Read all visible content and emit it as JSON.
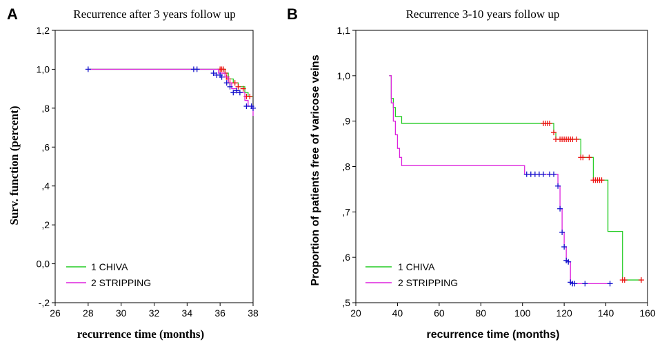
{
  "chart_data": [
    {
      "type": "line",
      "panel": "A",
      "title": "Recurrence after 3 years follow up",
      "xlabel": "recurrence time (months)",
      "ylabel": "Surv. function (percent)",
      "xlim": [
        26,
        38
      ],
      "ylim": [
        -0.2,
        1.2
      ],
      "x_ticks": [
        26,
        28,
        30,
        32,
        34,
        36,
        38
      ],
      "x_tick_labels": [
        "26",
        "28",
        "30",
        "32",
        "34",
        "36",
        "38"
      ],
      "y_ticks": [
        -0.2,
        0.0,
        0.2,
        0.4,
        0.6,
        0.8,
        1.0,
        1.2
      ],
      "y_tick_labels": [
        "-,2",
        "0,0",
        ",2",
        ",4",
        ",6",
        ",8",
        "1,0",
        "1,2"
      ],
      "legend_position": "bottom-left",
      "series": [
        {
          "name": "1 CHIVA",
          "color": "#22cc22",
          "censor_color": "#ee1111",
          "steps": [
            [
              28,
              1.0
            ],
            [
              36.1,
              1.0
            ],
            [
              36.3,
              0.98
            ],
            [
              36.5,
              0.95
            ],
            [
              36.8,
              0.93
            ],
            [
              37.1,
              0.91
            ],
            [
              37.5,
              0.88
            ],
            [
              37.7,
              0.86
            ],
            [
              38,
              0.86
            ]
          ],
          "censored": [
            [
              36.0,
              1.0
            ],
            [
              36.1,
              1.0
            ],
            [
              36.2,
              1.0
            ],
            [
              36.3,
              0.98
            ],
            [
              36.4,
              0.96
            ],
            [
              36.5,
              0.95
            ],
            [
              36.6,
              0.93
            ],
            [
              36.9,
              0.93
            ],
            [
              37.1,
              0.91
            ],
            [
              37.4,
              0.9
            ],
            [
              37.6,
              0.86
            ],
            [
              37.8,
              0.86
            ]
          ]
        },
        {
          "name": "2 STRIPPING",
          "color": "#dd22dd",
          "censor_color": "#1111cc",
          "steps": [
            [
              28,
              1.0
            ],
            [
              35.6,
              1.0
            ],
            [
              35.9,
              0.98
            ],
            [
              36.3,
              0.96
            ],
            [
              36.5,
              0.93
            ],
            [
              36.7,
              0.9
            ],
            [
              37.0,
              0.88
            ],
            [
              37.5,
              0.84
            ],
            [
              37.7,
              0.81
            ],
            [
              38.0,
              0.76
            ]
          ],
          "censored": [
            [
              28,
              1.0
            ],
            [
              34.4,
              1.0
            ],
            [
              34.6,
              1.0
            ],
            [
              35.6,
              0.98
            ],
            [
              35.8,
              0.97
            ],
            [
              36.0,
              0.97
            ],
            [
              36.1,
              0.96
            ],
            [
              36.4,
              0.93
            ],
            [
              36.6,
              0.91
            ],
            [
              36.8,
              0.88
            ],
            [
              37.0,
              0.89
            ],
            [
              37.2,
              0.88
            ],
            [
              37.6,
              0.81
            ],
            [
              37.9,
              0.81
            ],
            [
              38,
              0.8
            ]
          ]
        }
      ]
    },
    {
      "type": "line",
      "panel": "B",
      "title": "Recurrence 3-10 years follow up",
      "xlabel": "recurrence time (months)",
      "ylabel": "Proportion of patients free of varicose veins",
      "xlim": [
        20,
        160
      ],
      "ylim": [
        0.5,
        1.1
      ],
      "x_ticks": [
        20,
        40,
        60,
        80,
        100,
        120,
        140,
        160
      ],
      "x_tick_labels": [
        "20",
        "40",
        "60",
        "80",
        "100",
        "120",
        "140",
        "160"
      ],
      "y_ticks": [
        0.5,
        0.6,
        0.7,
        0.8,
        0.9,
        1.0,
        1.1
      ],
      "y_tick_labels": [
        ",5",
        ",6",
        ",7",
        ",8",
        ",9",
        "1,0",
        "1,1"
      ],
      "legend_position": "bottom-left",
      "series": [
        {
          "name": "1 CHIVA",
          "color": "#22cc22",
          "censor_color": "#ee1111",
          "steps": [
            [
              36,
              1.0
            ],
            [
              37,
              0.95
            ],
            [
              38,
              0.93
            ],
            [
              39,
              0.91
            ],
            [
              42,
              0.895
            ],
            [
              114,
              0.895
            ],
            [
              115,
              0.875
            ],
            [
              116,
              0.86
            ],
            [
              127,
              0.86
            ],
            [
              128,
              0.82
            ],
            [
              133,
              0.82
            ],
            [
              134,
              0.77
            ],
            [
              140,
              0.77
            ],
            [
              141,
              0.657
            ],
            [
              147,
              0.657
            ],
            [
              148,
              0.55
            ],
            [
              157,
              0.55
            ]
          ],
          "censored": [
            [
              110,
              0.895
            ],
            [
              111,
              0.895
            ],
            [
              112,
              0.895
            ],
            [
              113,
              0.895
            ],
            [
              115,
              0.875
            ],
            [
              116,
              0.86
            ],
            [
              118,
              0.86
            ],
            [
              119,
              0.86
            ],
            [
              120,
              0.86
            ],
            [
              121,
              0.86
            ],
            [
              122,
              0.86
            ],
            [
              123,
              0.86
            ],
            [
              124,
              0.86
            ],
            [
              126,
              0.86
            ],
            [
              128,
              0.82
            ],
            [
              129,
              0.82
            ],
            [
              132,
              0.82
            ],
            [
              134,
              0.77
            ],
            [
              135,
              0.77
            ],
            [
              136,
              0.77
            ],
            [
              137,
              0.77
            ],
            [
              138,
              0.77
            ],
            [
              148,
              0.55
            ],
            [
              149,
              0.55
            ],
            [
              157,
              0.55
            ]
          ]
        },
        {
          "name": "2 STRIPPING",
          "color": "#dd22dd",
          "censor_color": "#1111cc",
          "steps": [
            [
              36,
              1.0
            ],
            [
              37,
              0.94
            ],
            [
              38,
              0.9
            ],
            [
              39,
              0.87
            ],
            [
              40,
              0.84
            ],
            [
              41,
              0.82
            ],
            [
              42,
              0.802
            ],
            [
              100,
              0.802
            ],
            [
              101,
              0.783
            ],
            [
              116,
              0.783
            ],
            [
              117,
              0.757
            ],
            [
              118,
              0.707
            ],
            [
              119,
              0.655
            ],
            [
              120,
              0.623
            ],
            [
              121,
              0.593
            ],
            [
              122,
              0.59
            ],
            [
              123,
              0.545
            ],
            [
              124,
              0.542
            ],
            [
              142,
              0.542
            ]
          ],
          "censored": [
            [
              102,
              0.783
            ],
            [
              104,
              0.783
            ],
            [
              106,
              0.783
            ],
            [
              108,
              0.783
            ],
            [
              110,
              0.783
            ],
            [
              113,
              0.783
            ],
            [
              115,
              0.783
            ],
            [
              117,
              0.757
            ],
            [
              118,
              0.707
            ],
            [
              119,
              0.655
            ],
            [
              120,
              0.623
            ],
            [
              121,
              0.593
            ],
            [
              122,
              0.59
            ],
            [
              123,
              0.545
            ],
            [
              124,
              0.542
            ],
            [
              125,
              0.542
            ],
            [
              130,
              0.542
            ],
            [
              142,
              0.542
            ]
          ]
        }
      ]
    }
  ]
}
